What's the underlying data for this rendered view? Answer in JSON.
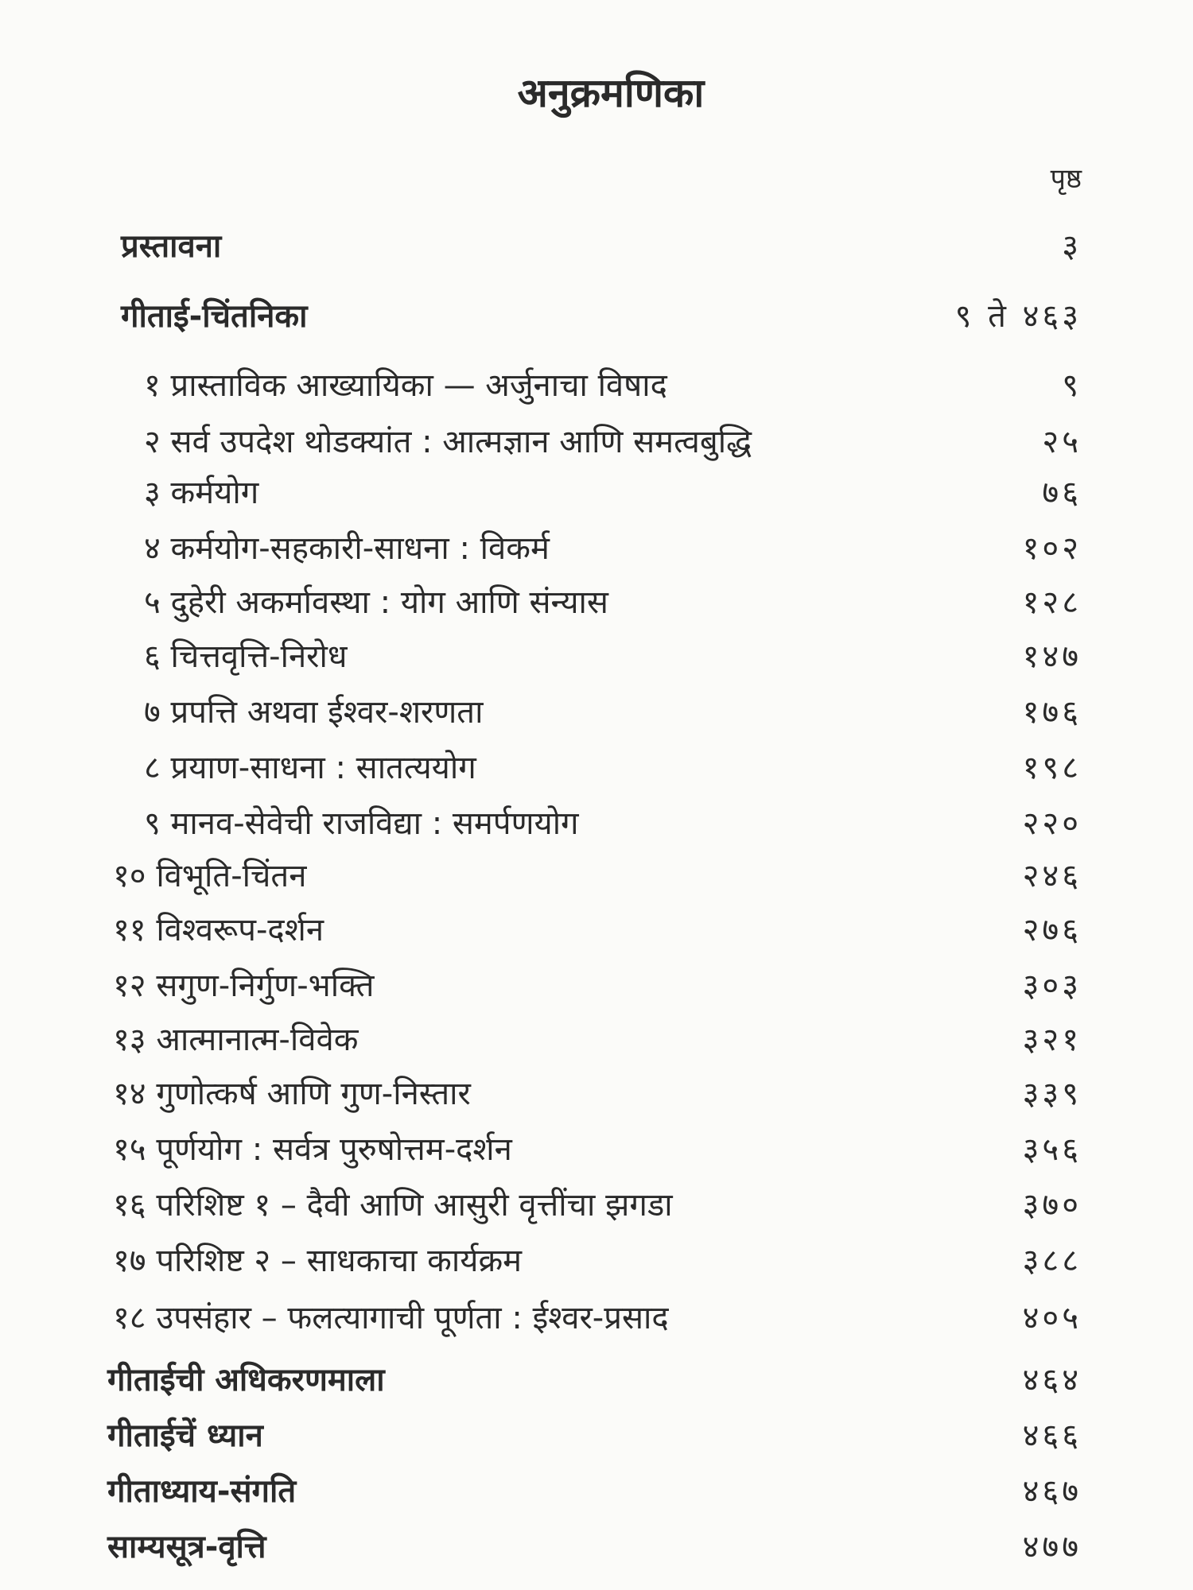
{
  "title": "अनुक्रमणिका",
  "page_column_header": "पृष्ठ",
  "front": [
    {
      "label": "प्रस्तावना",
      "page": "३"
    },
    {
      "label": "गीताई-चिंतनिका",
      "page": "९ ते ४६३"
    }
  ],
  "chapters": [
    {
      "label": "१ प्रास्ताविक आख्यायिका — अर्जुनाचा विषाद",
      "page": "९"
    },
    {
      "label": "२ सर्व उपदेश थोडक्यांत : आत्मज्ञान आणि समत्वबुद्धि",
      "page": "२५"
    },
    {
      "label": "३ कर्मयोग",
      "page": "७६"
    },
    {
      "label": "४ कर्मयोग-सहकारी-साधना : विकर्म",
      "page": "१०२"
    },
    {
      "label": "५ दुहेरी अकर्मावस्था : योग आणि संन्यास",
      "page": "१२८"
    },
    {
      "label": "६ चित्तवृत्ति-निरोध",
      "page": "१४७"
    },
    {
      "label": "७ प्रपत्ति अथवा ईश्वर-शरणता",
      "page": "१७६"
    },
    {
      "label": "८ प्रयाण-साधना : सातत्ययोग",
      "page": "१९८"
    },
    {
      "label": "९ मानव-सेवेची राजविद्या : समर्पणयोग",
      "page": "२२०"
    },
    {
      "label": "१० विभूति-चिंतन",
      "page": "२४६"
    },
    {
      "label": "११ विश्वरूप-दर्शन",
      "page": "२७६"
    },
    {
      "label": "१२ सगुण-निर्गुण-भक्ति",
      "page": "३०३"
    },
    {
      "label": "१३ आत्मानात्म-विवेक",
      "page": "३२१"
    },
    {
      "label": "१४ गुणोत्कर्ष आणि गुण-निस्तार",
      "page": "३३९"
    },
    {
      "label": "१५ पूर्णयोग : सर्वत्र पुरुषोत्तम-दर्शन",
      "page": "३५६"
    },
    {
      "label": "१६ परिशिष्ट १ – दैवी आणि आसुरी वृत्तींचा झगडा",
      "page": "३७०"
    },
    {
      "label": "१७ परिशिष्ट २ – साधकाचा कार्यक्रम",
      "page": "३८८"
    },
    {
      "label": "१८ उपसंहार – फलत्यागाची पूर्णता : ईश्वर-प्रसाद",
      "page": "४०५"
    }
  ],
  "back": [
    {
      "label": "गीताईची अधिकरणमाला",
      "page": "४६४"
    },
    {
      "label": "गीताईचें ध्यान",
      "page": "४६६"
    },
    {
      "label": "गीताध्याय-संगति",
      "page": "४६७"
    },
    {
      "label": "साम्यसूत्र-वृत्ति",
      "page": "४७७"
    }
  ]
}
